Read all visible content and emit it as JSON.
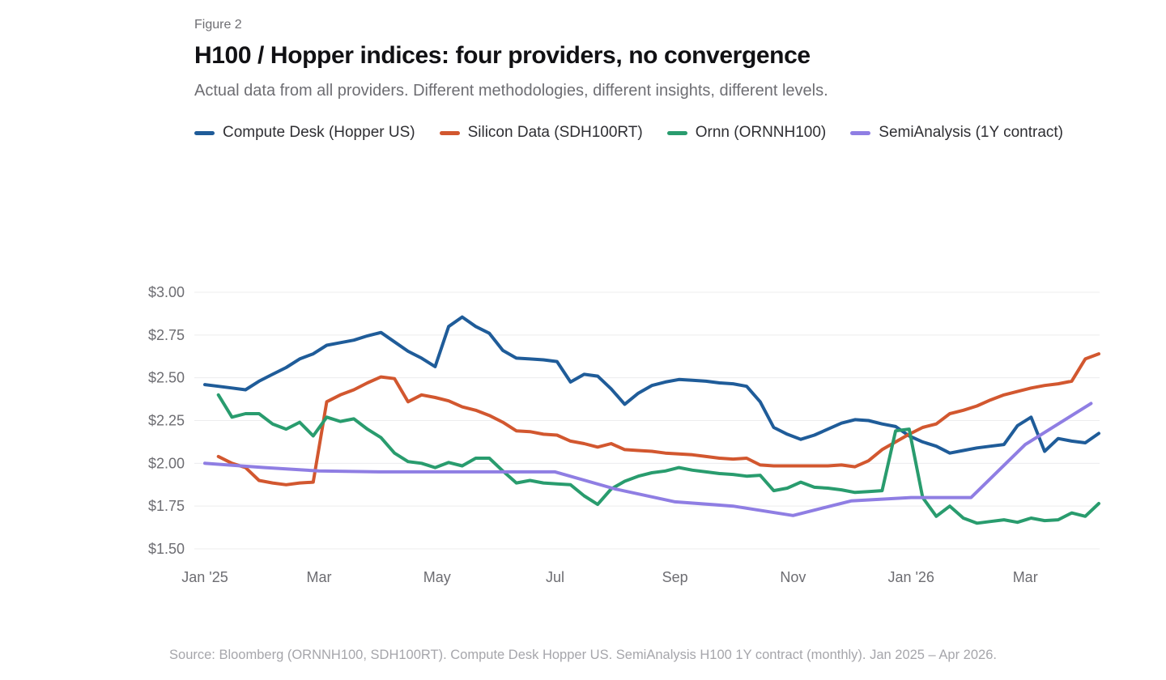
{
  "header": {
    "figure_label": "Figure 2",
    "title": "H100 / Hopper indices: four providers, no convergence",
    "subtitle": "Actual data from all providers. Different methodologies, different insights, different levels."
  },
  "footer": {
    "source": "Source: Bloomberg (ORNNH100, SDH100RT). Compute Desk Hopper US. SemiAnalysis H100 1Y contract (monthly). Jan 2025 – Apr 2026."
  },
  "legend": [
    {
      "label": "Compute Desk (Hopper US)",
      "color": "#1f5c99"
    },
    {
      "label": "Silicon Data (SDH100RT)",
      "color": "#d2572f"
    },
    {
      "label": "Ornn (ORNNH100)",
      "color": "#299c6e"
    },
    {
      "label": "SemiAnalysis (1Y contract)",
      "color": "#8f7ee3"
    }
  ],
  "chart_data": {
    "type": "line",
    "title": "H100 / Hopper indices: four providers, no convergence",
    "x_unit": "days since Jan 1 2025",
    "time_span": "Jan 2025 – Apr 2026",
    "grid": "horizontal-only",
    "ylim": [
      1.5,
      3.0
    ],
    "y_ticks": [
      {
        "value": 3.0,
        "label": "$3.00"
      },
      {
        "value": 2.75,
        "label": "$2.75"
      },
      {
        "value": 2.5,
        "label": "$2.50"
      },
      {
        "value": 2.25,
        "label": "$2.25"
      },
      {
        "value": 2.0,
        "label": "$2.00"
      },
      {
        "value": 1.75,
        "label": "$1.75"
      },
      {
        "value": 1.5,
        "label": "$1.50"
      }
    ],
    "x_ticks": [
      {
        "day": 0,
        "label": "Jan '25"
      },
      {
        "day": 59,
        "label": "Mar"
      },
      {
        "day": 120,
        "label": "May"
      },
      {
        "day": 181,
        "label": "Jul"
      },
      {
        "day": 243,
        "label": "Sep"
      },
      {
        "day": 304,
        "label": "Nov"
      },
      {
        "day": 365,
        "label": "Jan '26"
      },
      {
        "day": 424,
        "label": "Mar"
      }
    ],
    "series": [
      {
        "name": "Compute Desk (Hopper US)",
        "color": "#1f5c99",
        "cadence": "weekly",
        "step_days": 7,
        "values": [
          2.46,
          2.45,
          2.44,
          2.43,
          2.48,
          2.52,
          2.56,
          2.61,
          2.64,
          2.69,
          2.705,
          2.72,
          2.745,
          2.765,
          2.71,
          2.655,
          2.615,
          2.565,
          2.8,
          2.855,
          2.8,
          2.76,
          2.66,
          2.615,
          2.61,
          2.605,
          2.595,
          2.475,
          2.52,
          2.51,
          2.435,
          2.345,
          2.41,
          2.455,
          2.475,
          2.49,
          2.485,
          2.48,
          2.47,
          2.465,
          2.45,
          2.36,
          2.21,
          2.17,
          2.14,
          2.165,
          2.2,
          2.235,
          2.255,
          2.25,
          2.23,
          2.215,
          2.16,
          2.125,
          2.1,
          2.06,
          2.075,
          2.09,
          2.1,
          2.11,
          2.22,
          2.27,
          2.07,
          2.145,
          2.13,
          2.12,
          2.175
        ]
      },
      {
        "name": "Silicon Data (SDH100RT)",
        "color": "#d2572f",
        "cadence": "weekly",
        "step_days": 7,
        "values": [
          null,
          2.04,
          2.0,
          1.975,
          1.9,
          1.885,
          1.875,
          1.885,
          1.89,
          2.36,
          2.4,
          2.43,
          2.47,
          2.505,
          2.495,
          2.36,
          2.4,
          2.385,
          2.365,
          2.33,
          2.31,
          2.28,
          2.24,
          2.19,
          2.185,
          2.17,
          2.165,
          2.13,
          2.115,
          2.095,
          2.115,
          2.08,
          2.075,
          2.07,
          2.06,
          2.055,
          2.05,
          2.04,
          2.03,
          2.025,
          2.03,
          1.99,
          1.985,
          1.985,
          1.985,
          1.985,
          1.985,
          1.99,
          1.98,
          2.015,
          2.08,
          2.125,
          2.17,
          2.21,
          2.23,
          2.29,
          2.31,
          2.335,
          2.37,
          2.4,
          2.42,
          2.44,
          2.455,
          2.465,
          2.48,
          2.61,
          2.64
        ]
      },
      {
        "name": "Ornn (ORNNH100)",
        "color": "#299c6e",
        "cadence": "weekly",
        "step_days": 7,
        "values": [
          null,
          2.4,
          2.27,
          2.29,
          2.29,
          2.23,
          2.2,
          2.24,
          2.16,
          2.27,
          2.245,
          2.26,
          2.2,
          2.15,
          2.06,
          2.01,
          2.0,
          1.975,
          2.005,
          1.985,
          2.03,
          2.03,
          1.955,
          1.885,
          1.9,
          1.885,
          1.88,
          1.875,
          1.81,
          1.76,
          1.85,
          1.895,
          1.925,
          1.945,
          1.955,
          1.975,
          1.96,
          1.95,
          1.94,
          1.935,
          1.925,
          1.93,
          1.84,
          1.855,
          1.89,
          1.86,
          1.855,
          1.845,
          1.83,
          1.835,
          1.84,
          2.19,
          2.2,
          1.8,
          1.69,
          1.75,
          1.68,
          1.65,
          1.66,
          1.67,
          1.655,
          1.68,
          1.665,
          1.67,
          1.71,
          1.69,
          1.765
        ]
      },
      {
        "name": "SemiAnalysis (1Y contract)",
        "color": "#8f7ee3",
        "cadence": "monthly",
        "days": [
          0,
          31,
          59,
          90,
          120,
          151,
          181,
          212,
          243,
          273,
          304,
          334,
          365,
          396,
          424,
          458
        ],
        "values": [
          2.0,
          1.975,
          1.955,
          1.95,
          1.95,
          1.95,
          1.95,
          1.85,
          1.775,
          1.75,
          1.695,
          1.78,
          1.8,
          1.8,
          2.11,
          2.35
        ]
      }
    ]
  }
}
